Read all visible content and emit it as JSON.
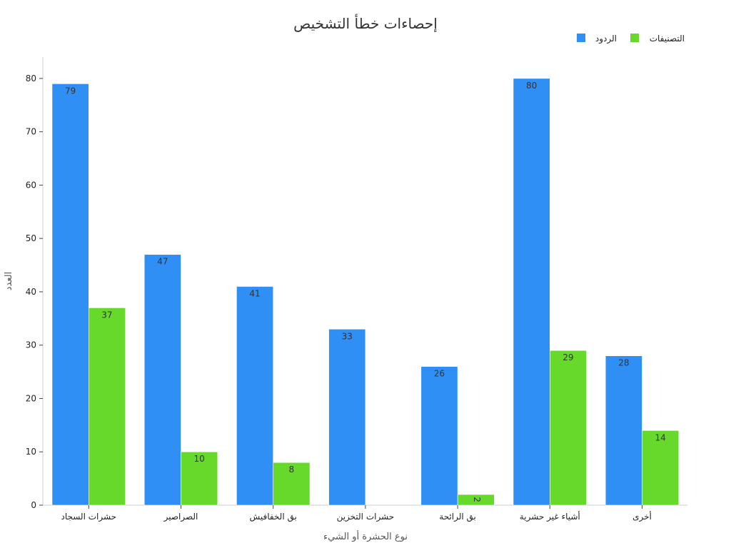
{
  "chart_data": {
    "type": "bar",
    "title": "إحصاءات خطأ التشخيص",
    "xlabel": "نوع الحشرة أو الشيء",
    "ylabel": "العدد",
    "categories": [
      "حشرات السجاد",
      "الصراصير",
      "بق الخفافيش",
      "حشرات التخزين",
      "بق الرائحة",
      "أشياء غير حشرية",
      "أخرى"
    ],
    "series": [
      {
        "name": "الردود",
        "color": "#2f8ff5",
        "values": [
          79,
          47,
          41,
          33,
          26,
          80,
          28
        ]
      },
      {
        "name": "التصنيفات",
        "color": "#66d92a",
        "values": [
          37,
          10,
          8,
          0,
          2,
          29,
          14
        ]
      }
    ],
    "ylim": [
      0,
      84
    ],
    "yticks": [
      0,
      10,
      20,
      30,
      40,
      50,
      60,
      70,
      80
    ],
    "grid": false,
    "legend_position": "top-right"
  }
}
